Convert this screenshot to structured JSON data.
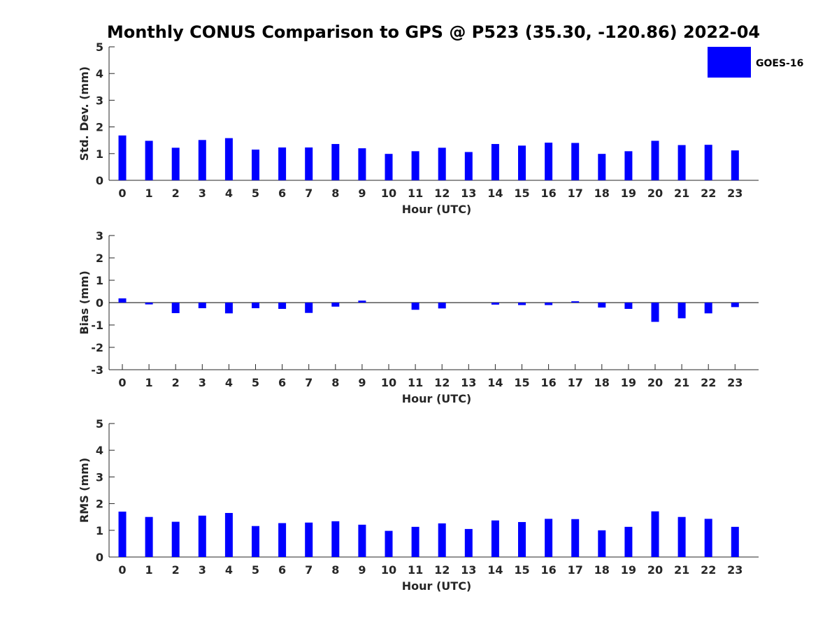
{
  "figure_title": "Monthly CONUS Comparison to GPS @ P523 (35.30, -120.86) 2022-04",
  "colors": {
    "bar": "#0000ff",
    "axis": "#262626"
  },
  "legend": {
    "label": "GOES-16",
    "placement": "top-right"
  },
  "chart_data": [
    {
      "type": "bar",
      "xlabel": "Hour (UTC)",
      "ylabel": "Std. Dev. (mm)",
      "ylim": [
        0,
        5
      ],
      "yticks": [
        0,
        1,
        2,
        3,
        4,
        5
      ],
      "categories": [
        "0",
        "1",
        "2",
        "3",
        "4",
        "5",
        "6",
        "7",
        "8",
        "9",
        "10",
        "11",
        "12",
        "13",
        "14",
        "15",
        "16",
        "17",
        "18",
        "19",
        "20",
        "21",
        "22",
        "23"
      ],
      "series": [
        {
          "name": "GOES-16",
          "values": [
            1.68,
            1.48,
            1.22,
            1.51,
            1.58,
            1.15,
            1.23,
            1.23,
            1.36,
            1.2,
            0.99,
            1.09,
            1.22,
            1.06,
            1.36,
            1.3,
            1.41,
            1.4,
            0.99,
            1.09,
            1.48,
            1.32,
            1.33,
            1.12
          ]
        }
      ]
    },
    {
      "type": "bar",
      "xlabel": "Hour (UTC)",
      "ylabel": "Bias (mm)",
      "ylim": [
        -3,
        3
      ],
      "yticks": [
        -3,
        -2,
        -1,
        0,
        1,
        2,
        3
      ],
      "categories": [
        "0",
        "1",
        "2",
        "3",
        "4",
        "5",
        "6",
        "7",
        "8",
        "9",
        "10",
        "11",
        "12",
        "13",
        "14",
        "15",
        "16",
        "17",
        "18",
        "19",
        "20",
        "21",
        "22",
        "23"
      ],
      "series": [
        {
          "name": "GOES-16",
          "values": [
            0.19,
            -0.08,
            -0.47,
            -0.25,
            -0.48,
            -0.25,
            -0.28,
            -0.46,
            -0.18,
            0.09,
            0.0,
            -0.32,
            -0.26,
            0.0,
            -0.09,
            -0.11,
            -0.11,
            0.06,
            -0.22,
            -0.28,
            -0.86,
            -0.7,
            -0.48,
            -0.2
          ]
        }
      ]
    },
    {
      "type": "bar",
      "xlabel": "Hour (UTC)",
      "ylabel": "RMS (mm)",
      "ylim": [
        0,
        5
      ],
      "yticks": [
        0,
        1,
        2,
        3,
        4,
        5
      ],
      "categories": [
        "0",
        "1",
        "2",
        "3",
        "4",
        "5",
        "6",
        "7",
        "8",
        "9",
        "10",
        "11",
        "12",
        "13",
        "14",
        "15",
        "16",
        "17",
        "18",
        "19",
        "20",
        "21",
        "22",
        "23"
      ],
      "series": [
        {
          "name": "GOES-16",
          "values": [
            1.7,
            1.5,
            1.32,
            1.55,
            1.65,
            1.16,
            1.27,
            1.29,
            1.34,
            1.21,
            0.98,
            1.13,
            1.26,
            1.05,
            1.37,
            1.31,
            1.43,
            1.42,
            1.0,
            1.13,
            1.71,
            1.5,
            1.43,
            1.13
          ]
        }
      ]
    }
  ]
}
